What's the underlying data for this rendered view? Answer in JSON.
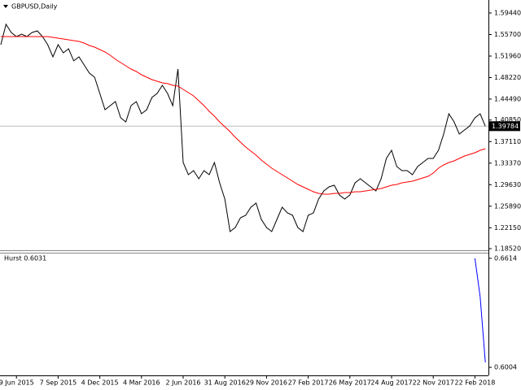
{
  "chart_data": [
    {
      "type": "line",
      "title": "GBPUSD,Daily",
      "categories": [
        null,
        null,
        null,
        "9 Jun 2015",
        null,
        null,
        null,
        null,
        null,
        null,
        null,
        "7 Sep 2015",
        null,
        null,
        null,
        null,
        null,
        null,
        null,
        "4 Dec 2015",
        null,
        null,
        null,
        null,
        null,
        null,
        null,
        "4 Mar 2016",
        null,
        null,
        null,
        null,
        null,
        null,
        null,
        "2 Jun 2016",
        null,
        null,
        null,
        null,
        null,
        null,
        null,
        "31 Aug 2016",
        null,
        null,
        null,
        null,
        null,
        null,
        null,
        "29 Nov 2016",
        null,
        null,
        null,
        null,
        null,
        null,
        null,
        "27 Feb 2017",
        null,
        null,
        null,
        null,
        null,
        null,
        null,
        "26 May 2017",
        null,
        null,
        null,
        null,
        null,
        null,
        null,
        "24 Aug 2017",
        null,
        null,
        null,
        null,
        null,
        null,
        null,
        "22 Nov 2017",
        null,
        null,
        null,
        null,
        null,
        null,
        null,
        "22 Feb 2018",
        null,
        null
      ],
      "series": [
        {
          "color": "#000000",
          "values": [
            1.5394,
            1.5747,
            1.5605,
            1.5535,
            1.5577,
            1.5535,
            1.5605,
            1.5634,
            1.5535,
            1.5394,
            1.5182,
            1.5394,
            1.5253,
            1.5323,
            1.5112,
            1.5182,
            1.5041,
            1.49,
            1.4829,
            1.4547,
            1.4265,
            1.4336,
            1.4406,
            1.4124,
            1.4053,
            1.4336,
            1.4406,
            1.4194,
            1.4265,
            1.4477,
            1.4547,
            1.4688,
            1.4547,
            1.4336,
            1.497,
            1.3348,
            1.3136,
            1.3207,
            1.3066,
            1.3207,
            1.3136,
            1.3348,
            1.2995,
            1.2713,
            1.2148,
            1.2219,
            1.2388,
            1.2431,
            1.2572,
            1.2642,
            1.236,
            1.2219,
            1.2148,
            1.236,
            1.2572,
            1.2473,
            1.2431,
            1.2219,
            1.2148,
            1.2431,
            1.2473,
            1.2713,
            1.2854,
            1.2925,
            1.2953,
            1.2783,
            1.2713,
            1.2783,
            1.2995,
            1.3066,
            1.2995,
            1.2925,
            1.2854,
            1.3066,
            1.3418,
            1.3559,
            1.3277,
            1.3207,
            1.3207,
            1.3136,
            1.3277,
            1.3348,
            1.3418,
            1.3418,
            1.3559,
            1.3842,
            1.4194,
            1.4053,
            1.3842,
            1.3912,
            1.3983,
            1.4124,
            1.4194,
            1.39784
          ]
        },
        {
          "color": "#ff0000",
          "values": [
            1.5535,
            1.5535,
            1.5535,
            1.5535,
            1.5535,
            1.5535,
            1.5535,
            1.5535,
            1.5535,
            1.5535,
            1.5521,
            1.5507,
            1.5492,
            1.5478,
            1.5464,
            1.545,
            1.5422,
            1.538,
            1.5351,
            1.5309,
            1.5267,
            1.521,
            1.514,
            1.5083,
            1.5027,
            1.497,
            1.4928,
            1.4872,
            1.4829,
            1.4787,
            1.4759,
            1.4731,
            1.4717,
            1.4688,
            1.4674,
            1.4618,
            1.4561,
            1.4505,
            1.442,
            1.4336,
            1.4237,
            1.4152,
            1.4053,
            1.3969,
            1.3884,
            1.3785,
            1.3701,
            1.3616,
            1.3545,
            1.3475,
            1.339,
            1.332,
            1.3249,
            1.3193,
            1.3136,
            1.308,
            1.3023,
            1.2967,
            1.2925,
            1.2882,
            1.284,
            1.2812,
            1.2797,
            1.2797,
            1.2812,
            1.2812,
            1.2826,
            1.2826,
            1.284,
            1.284,
            1.2854,
            1.2868,
            1.2882,
            1.2896,
            1.2925,
            1.2953,
            1.2967,
            1.2995,
            1.3009,
            1.3023,
            1.3051,
            1.308,
            1.3108,
            1.3164,
            1.3249,
            1.3305,
            1.3348,
            1.3376,
            1.3418,
            1.3461,
            1.3489,
            1.3517,
            1.3559,
            1.3588
          ]
        }
      ],
      "last_value": 1.39784,
      "ylim": [
        1.1824,
        1.6113
      ],
      "yticks": [
        {
          "value": 1.5944,
          "label": "1.59440"
        },
        {
          "value": 1.557,
          "label": "1.55700"
        },
        {
          "value": 1.5196,
          "label": "1.51960"
        },
        {
          "value": 1.4822,
          "label": "1.48220"
        },
        {
          "value": 1.4449,
          "label": "1.44490"
        },
        {
          "value": 1.4085,
          "label": "1.40850"
        },
        {
          "value": 1.3711,
          "label": "1.37110"
        },
        {
          "value": 1.3337,
          "label": "1.33370"
        },
        {
          "value": 1.2963,
          "label": "1.29630"
        },
        {
          "value": 1.2589,
          "label": "1.25890"
        },
        {
          "value": 1.2215,
          "label": "1.22150"
        },
        {
          "value": 1.1852,
          "label": "1.18520"
        }
      ],
      "grid": false
    },
    {
      "type": "line",
      "title": "Hurst 0.6031",
      "series": [
        {
          "color": "#0000ff",
          "values": [
            null,
            null,
            null,
            null,
            null,
            null,
            null,
            null,
            null,
            null,
            null,
            null,
            null,
            null,
            null,
            null,
            null,
            null,
            null,
            null,
            null,
            null,
            null,
            null,
            null,
            null,
            null,
            null,
            null,
            null,
            null,
            null,
            null,
            null,
            null,
            null,
            null,
            null,
            null,
            null,
            null,
            null,
            null,
            null,
            null,
            null,
            null,
            null,
            null,
            null,
            null,
            null,
            null,
            null,
            null,
            null,
            null,
            null,
            null,
            null,
            null,
            null,
            null,
            null,
            null,
            null,
            null,
            null,
            null,
            null,
            null,
            null,
            null,
            null,
            null,
            null,
            null,
            null,
            null,
            null,
            null,
            null,
            null,
            null,
            null,
            null,
            null,
            null,
            null,
            null,
            null,
            0.6614,
            0.64,
            0.6031
          ]
        }
      ],
      "ylim": [
        0.5968,
        0.6641
      ],
      "yticks": [
        0.6614,
        0.6004
      ],
      "grid": false
    }
  ]
}
